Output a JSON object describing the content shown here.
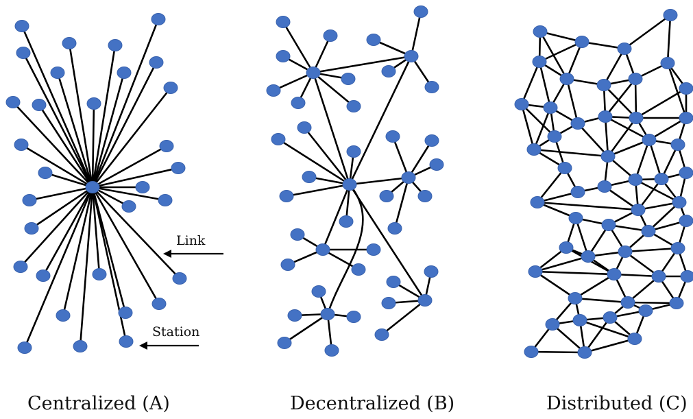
{
  "panels": {
    "centralized": {
      "caption": "Centralized (A)"
    },
    "decentralized": {
      "caption": "Decentralized (B)"
    },
    "distributed": {
      "caption": "Distributed (C)"
    }
  },
  "annotations": {
    "link": "Link",
    "station": "Station"
  },
  "colors": {
    "node_fill": "#4472C4",
    "node_stroke": "#3A63AE",
    "edge": "#000000",
    "text": "#111111"
  },
  "icons": {
    "station": "blue-ellipse-node",
    "link": "black-line-edge",
    "arrow": "left-arrow"
  }
}
